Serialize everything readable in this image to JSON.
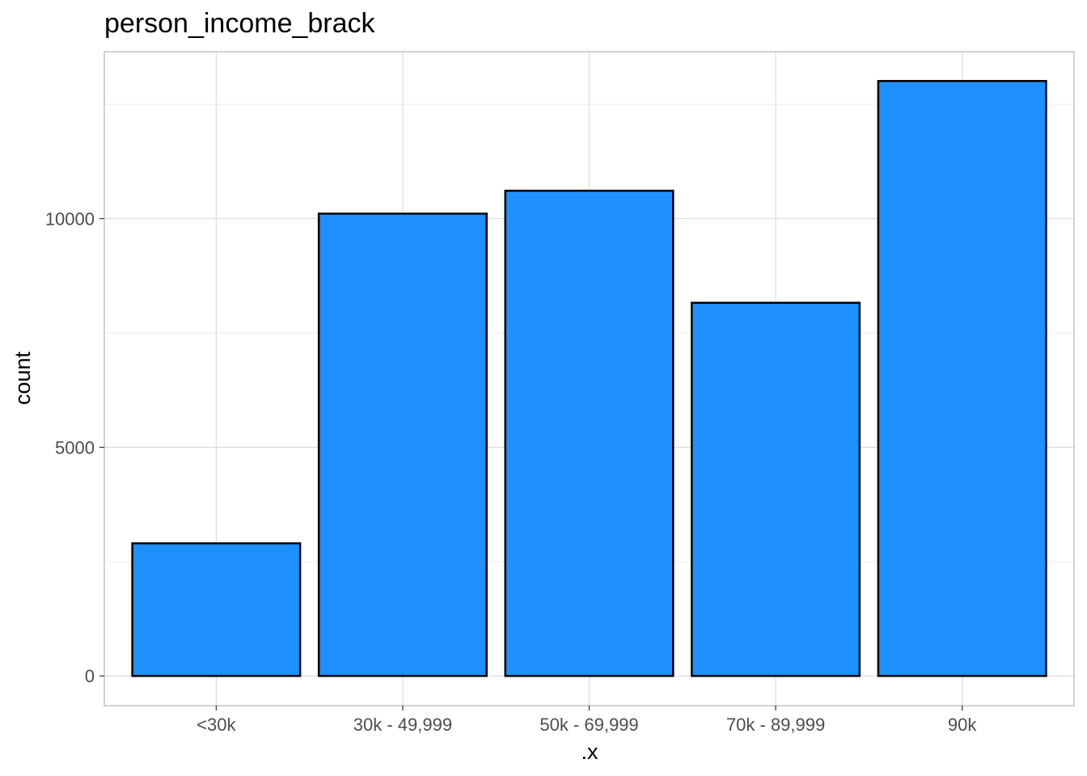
{
  "chart_data": {
    "type": "bar",
    "title": "person_income_brack",
    "xlabel": ".x",
    "ylabel": "count",
    "categories": [
      "<30k",
      "30k - 49,999",
      "50k - 69,999",
      "70k - 89,999",
      "90k"
    ],
    "values": [
      2900,
      10110,
      10610,
      8160,
      13010
    ],
    "ylim": [
      -650,
      13650
    ],
    "yticks": [
      0,
      5000,
      10000
    ],
    "ytick_labels": [
      "0",
      "5000",
      "10000"
    ],
    "grid": true,
    "legend": "none",
    "colors": {
      "bar_fill": "#1E90FF",
      "bar_stroke": "#000000",
      "grid_major": "#dcdcdc",
      "grid_minor": "#eeeeee",
      "panel_border": "#b3b3b3"
    }
  }
}
